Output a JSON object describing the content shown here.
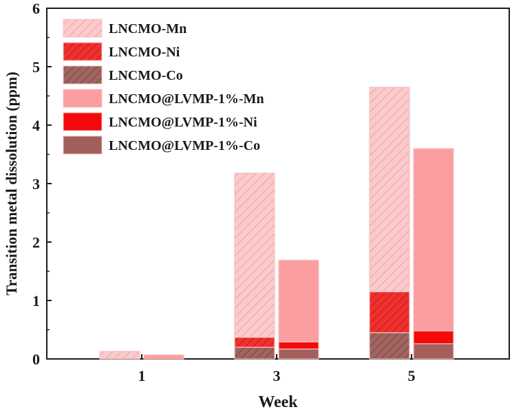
{
  "chart_data": {
    "type": "bar",
    "stacked": true,
    "title": "",
    "xlabel": "Week",
    "ylabel": "Transition metal dissolution (ppm)",
    "ylim": [
      0,
      6
    ],
    "yticks": [
      "0",
      "1",
      "2",
      "3",
      "4",
      "5",
      "6"
    ],
    "categories": [
      "1",
      "3",
      "5"
    ],
    "grid": false,
    "legend_position": "top-left",
    "groups": [
      {
        "name": "LNCMO",
        "pattern": "hatched",
        "series": [
          {
            "name": "LNCMO-Co",
            "component": "Co",
            "color": "#a0655f",
            "values": [
              0.0,
              0.2,
              0.45
            ]
          },
          {
            "name": "LNCMO-Ni",
            "component": "Ni",
            "color": "#f0302e",
            "values": [
              0.0,
              0.17,
              0.7
            ]
          },
          {
            "name": "LNCMO-Mn",
            "component": "Mn",
            "color": "#f9a0a0",
            "values": [
              0.13,
              2.81,
              3.5
            ]
          }
        ],
        "totals": [
          0.13,
          3.18,
          4.65
        ]
      },
      {
        "name": "LNCMO@LVMP-1%",
        "pattern": "solid",
        "series": [
          {
            "name": "LNCMO@LVMP-1%-Co",
            "component": "Co",
            "color": "#a35f5c",
            "values": [
              0.0,
              0.17,
              0.26
            ]
          },
          {
            "name": "LNCMO@LVMP-1%-Ni",
            "component": "Ni",
            "color": "#f40a0a",
            "values": [
              0.0,
              0.12,
              0.22
            ]
          },
          {
            "name": "LNCMO@LVMP-1%-Mn",
            "component": "Mn",
            "color": "#fb9ea0",
            "values": [
              0.07,
              1.4,
              3.12
            ]
          }
        ],
        "totals": [
          0.07,
          1.69,
          3.6
        ]
      }
    ],
    "legend": [
      "LNCMO-Mn",
      "LNCMO-Ni",
      "LNCMO-Co",
      "LNCMO@LVMP-1%-Mn",
      "LNCMO@LVMP-1%-Ni",
      "LNCMO@LVMP-1%-Co"
    ]
  }
}
